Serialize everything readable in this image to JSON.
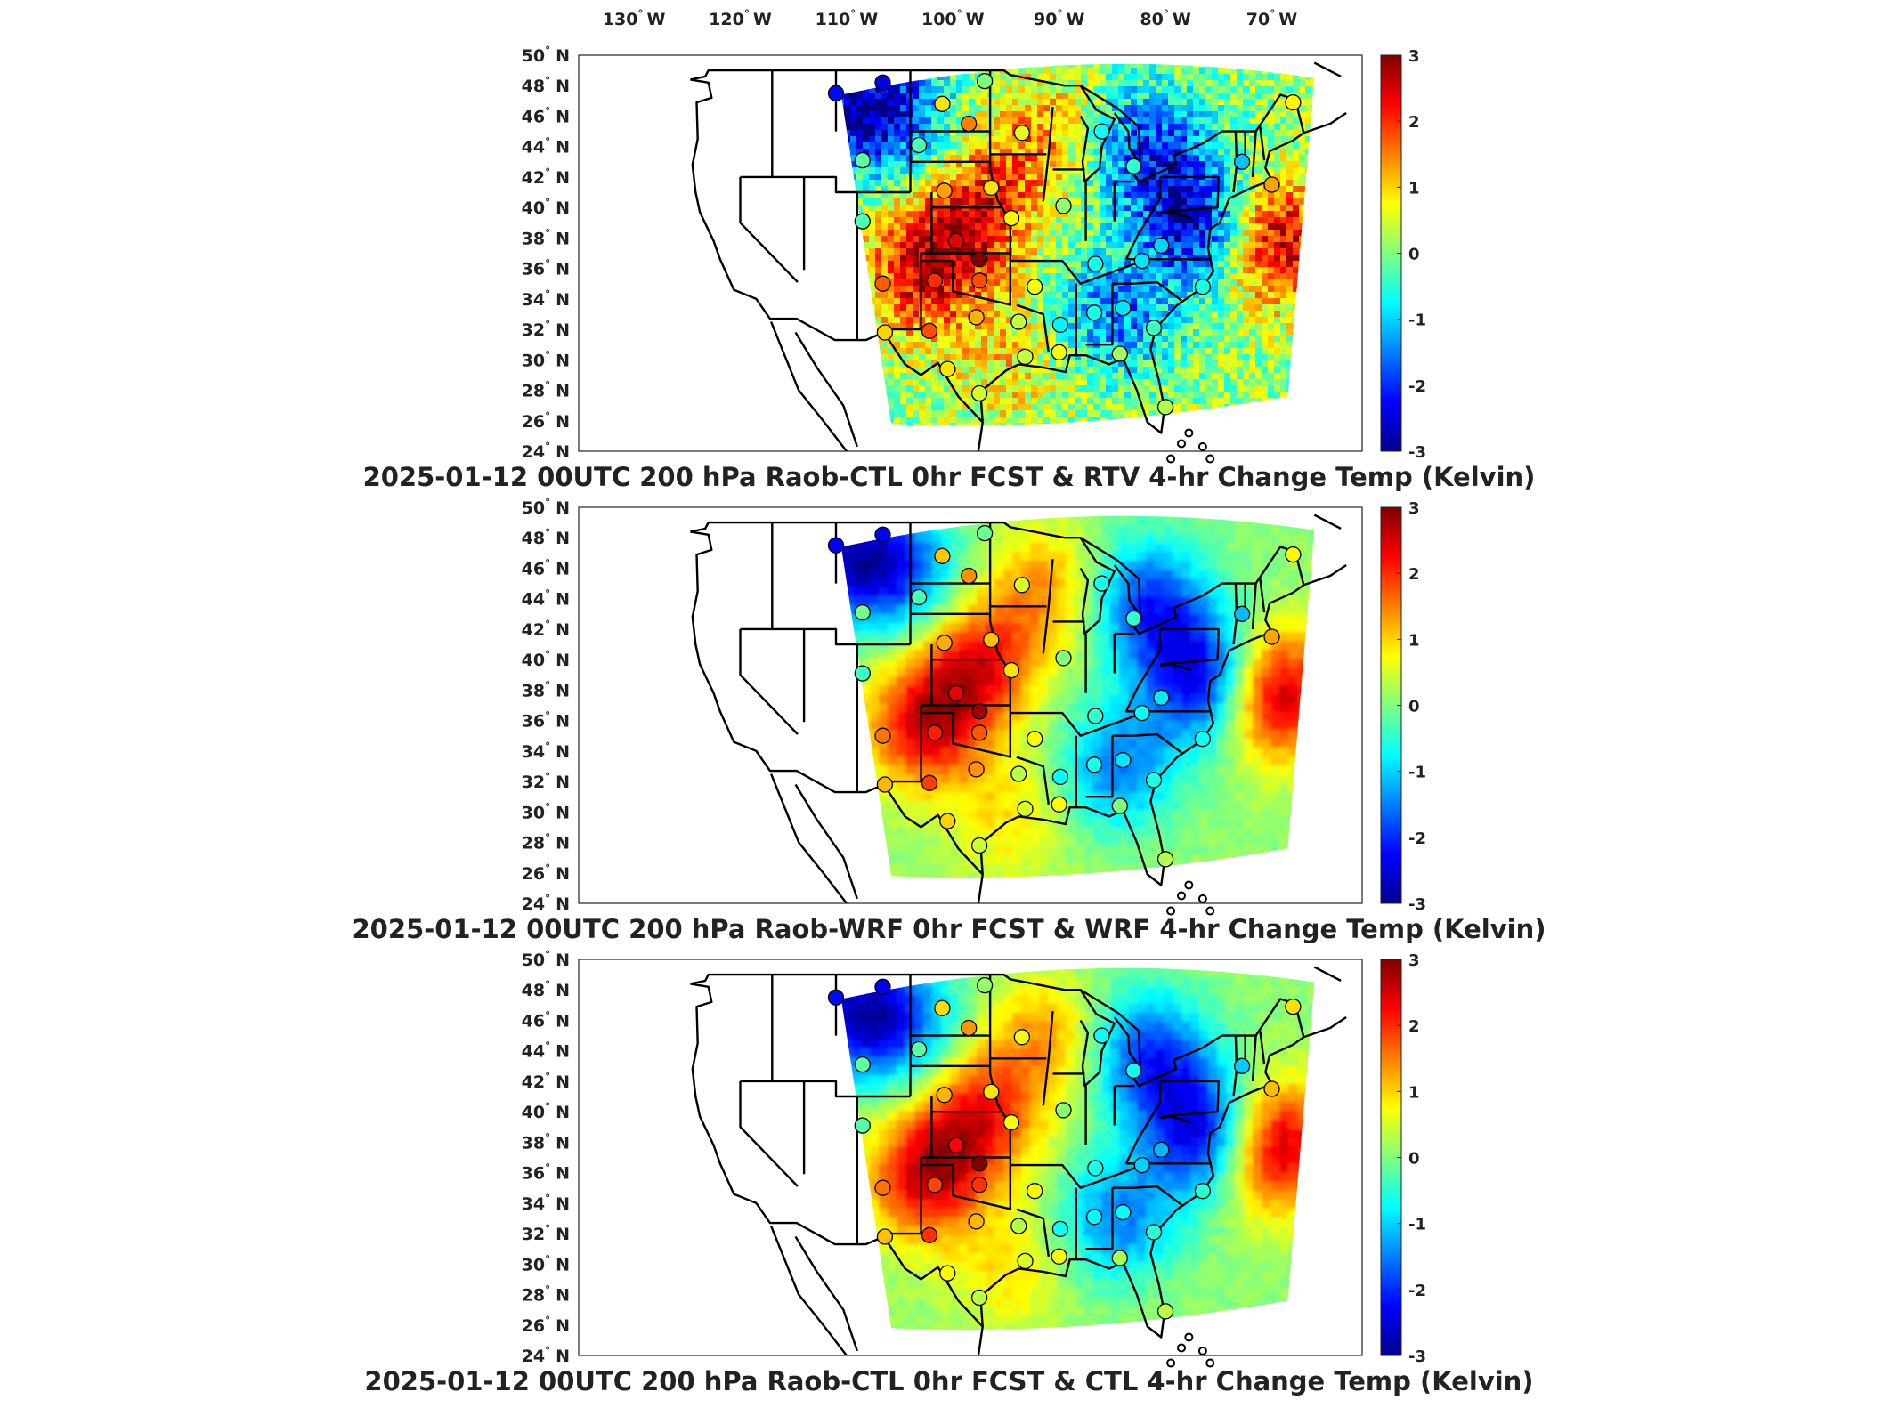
{
  "figure": {
    "top_labels": [
      {
        "value": "130",
        "unit": "W"
      },
      {
        "value": "120",
        "unit": "W"
      },
      {
        "value": "110",
        "unit": "W"
      },
      {
        "value": "100",
        "unit": "W"
      },
      {
        "value": "90",
        "unit": "W"
      },
      {
        "value": "80",
        "unit": "W"
      },
      {
        "value": "70",
        "unit": "W"
      }
    ],
    "lat_labels": [
      {
        "value": "50",
        "unit": "N"
      },
      {
        "value": "48",
        "unit": "N"
      },
      {
        "value": "46",
        "unit": "N"
      },
      {
        "value": "44",
        "unit": "N"
      },
      {
        "value": "42",
        "unit": "N"
      },
      {
        "value": "40",
        "unit": "N"
      },
      {
        "value": "38",
        "unit": "N"
      },
      {
        "value": "36",
        "unit": "N"
      },
      {
        "value": "34",
        "unit": "N"
      },
      {
        "value": "32",
        "unit": "N"
      },
      {
        "value": "30",
        "unit": "N"
      },
      {
        "value": "28",
        "unit": "N"
      },
      {
        "value": "26",
        "unit": "N"
      },
      {
        "value": "24",
        "unit": "N"
      }
    ],
    "colorbar": {
      "colormap": "jet",
      "range": [
        -3,
        3
      ],
      "ticks": [
        "3",
        "2",
        "1",
        "0",
        "-1",
        "-2",
        "-3"
      ]
    },
    "panels": [
      {
        "title": "2025-01-12 00UTC 200 hPa Raob-CTL 0hr FCST & RTV 4-hr Change Temp (Kelvin)",
        "style": "noisy"
      },
      {
        "title": "2025-01-12 00UTC 200 hPa Raob-WRF 0hr FCST & WRF 4-hr Change Temp (Kelvin)",
        "style": "smooth"
      },
      {
        "title": "2025-01-12 00UTC 200 hPa Raob-CTL 0hr FCST & CTL 4-hr Change Temp (Kelvin)",
        "style": "smooth"
      }
    ],
    "field_anomalies": [
      {
        "lon": -110,
        "lat": 47,
        "value": -2.2
      },
      {
        "lon": -105,
        "lat": 46,
        "value": -1.5
      },
      {
        "lon": -103,
        "lat": 36,
        "value": 2.3
      },
      {
        "lon": -98,
        "lat": 40,
        "value": 2.0
      },
      {
        "lon": -92,
        "lat": 45,
        "value": 1.2
      },
      {
        "lon": -82,
        "lat": 44,
        "value": -2.0
      },
      {
        "lon": -77,
        "lat": 39,
        "value": -2.6
      },
      {
        "lon": -85,
        "lat": 33,
        "value": -1.6
      },
      {
        "lon": -70,
        "lat": 38,
        "value": 2.7
      },
      {
        "lon": -95,
        "lat": 30,
        "value": 0.8
      },
      {
        "lon": -84,
        "lat": 28,
        "value": 0.1
      }
    ],
    "stations": [
      {
        "lon": -111.0,
        "lat": 47.5,
        "value": -2.2
      },
      {
        "lon": -106.6,
        "lat": 48.2,
        "value": -2.4
      },
      {
        "lon": -101.0,
        "lat": 46.8,
        "value": 0.9
      },
      {
        "lon": -97.0,
        "lat": 48.3,
        "value": 0.0
      },
      {
        "lon": -103.2,
        "lat": 44.1,
        "value": -0.3
      },
      {
        "lon": -98.5,
        "lat": 45.5,
        "value": 1.5
      },
      {
        "lon": -93.5,
        "lat": 44.9,
        "value": 0.6
      },
      {
        "lon": -108.5,
        "lat": 43.1,
        "value": -0.2
      },
      {
        "lon": -100.8,
        "lat": 41.1,
        "value": 1.3
      },
      {
        "lon": -96.4,
        "lat": 41.3,
        "value": 0.9
      },
      {
        "lon": -89.6,
        "lat": 40.1,
        "value": 0.1
      },
      {
        "lon": -83.0,
        "lat": 42.7,
        "value": -0.5
      },
      {
        "lon": -86.0,
        "lat": 45.0,
        "value": -0.7
      },
      {
        "lon": -108.5,
        "lat": 39.1,
        "value": -0.3
      },
      {
        "lon": -99.7,
        "lat": 37.8,
        "value": 2.4
      },
      {
        "lon": -94.5,
        "lat": 39.3,
        "value": 0.8
      },
      {
        "lon": -97.5,
        "lat": 36.6,
        "value": 3.0
      },
      {
        "lon": -97.5,
        "lat": 35.2,
        "value": 1.8
      },
      {
        "lon": -101.7,
        "lat": 35.2,
        "value": 2.0
      },
      {
        "lon": -106.6,
        "lat": 35.0,
        "value": 1.7
      },
      {
        "lon": -92.3,
        "lat": 34.8,
        "value": 0.7
      },
      {
        "lon": -86.6,
        "lat": 36.3,
        "value": -0.6
      },
      {
        "lon": -82.2,
        "lat": 36.5,
        "value": -0.9
      },
      {
        "lon": -80.4,
        "lat": 37.5,
        "value": -1.0
      },
      {
        "lon": -102.2,
        "lat": 31.9,
        "value": 1.8
      },
      {
        "lon": -97.8,
        "lat": 32.8,
        "value": 1.2
      },
      {
        "lon": -93.8,
        "lat": 32.5,
        "value": 0.4
      },
      {
        "lon": -89.9,
        "lat": 32.3,
        "value": -0.8
      },
      {
        "lon": -86.7,
        "lat": 33.1,
        "value": -0.6
      },
      {
        "lon": -84.0,
        "lat": 33.4,
        "value": -0.9
      },
      {
        "lon": -81.1,
        "lat": 32.1,
        "value": -0.4
      },
      {
        "lon": -106.4,
        "lat": 31.8,
        "value": 1.0
      },
      {
        "lon": -100.5,
        "lat": 29.4,
        "value": 0.9
      },
      {
        "lon": -97.5,
        "lat": 27.8,
        "value": 0.5
      },
      {
        "lon": -93.2,
        "lat": 30.2,
        "value": 0.4
      },
      {
        "lon": -90.0,
        "lat": 30.5,
        "value": 0.7
      },
      {
        "lon": -84.3,
        "lat": 30.4,
        "value": 0.2
      },
      {
        "lon": -80.0,
        "lat": 26.9,
        "value": 0.3
      },
      {
        "lon": -76.5,
        "lat": 34.8,
        "value": -0.6
      },
      {
        "lon": -70.0,
        "lat": 41.5,
        "value": 1.3
      },
      {
        "lon": -72.8,
        "lat": 43.0,
        "value": -1.1
      },
      {
        "lon": -68.0,
        "lat": 46.9,
        "value": 0.8
      }
    ]
  }
}
